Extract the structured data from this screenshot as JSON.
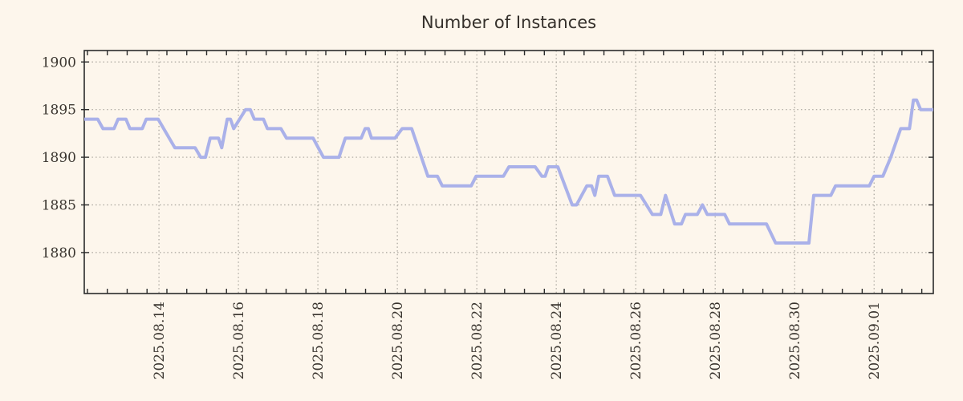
{
  "chart": {
    "title": "Number of Instances",
    "colors": {
      "background": "#fdf6ec",
      "line": "#aab1e9",
      "grid": "#a8a49c",
      "axis": "#2b2b2b",
      "text": "#3a352f"
    }
  },
  "chart_data": {
    "type": "line",
    "title": "Number of Instances",
    "xlabel": "",
    "ylabel": "",
    "x_unit": "days since 2025-08-12 00:00",
    "xlim": [
      0.12,
      21.49
    ],
    "ylim": [
      1875.7,
      1901.2
    ],
    "grid": "dotted",
    "legend": false,
    "y_ticks": [
      1900,
      1895,
      1890,
      1885,
      1880
    ],
    "x_ticks": [
      {
        "t": 2,
        "label": "2025.08.14"
      },
      {
        "t": 4,
        "label": "2025.08.16"
      },
      {
        "t": 6,
        "label": "2025.08.18"
      },
      {
        "t": 8,
        "label": "2025.08.20"
      },
      {
        "t": 10,
        "label": "2025.08.22"
      },
      {
        "t": 12,
        "label": "2025.08.24"
      },
      {
        "t": 14,
        "label": "2025.08.26"
      },
      {
        "t": 16,
        "label": "2025.08.28"
      },
      {
        "t": 18,
        "label": "2025.08.30"
      },
      {
        "t": 20,
        "label": "2025.09.01"
      }
    ],
    "minor_x_tick_start": 0.2,
    "minor_x_tick_step": 0.5,
    "series": [
      {
        "name": "instances",
        "points": [
          [
            0.12,
            1894
          ],
          [
            0.46,
            1894
          ],
          [
            0.59,
            1893
          ],
          [
            0.87,
            1893
          ],
          [
            0.97,
            1894
          ],
          [
            1.17,
            1894
          ],
          [
            1.27,
            1893
          ],
          [
            1.58,
            1893
          ],
          [
            1.68,
            1894
          ],
          [
            1.98,
            1894
          ],
          [
            2.4,
            1891
          ],
          [
            2.91,
            1891
          ],
          [
            3.05,
            1890
          ],
          [
            3.17,
            1890
          ],
          [
            3.29,
            1892
          ],
          [
            3.5,
            1892
          ],
          [
            3.58,
            1891
          ],
          [
            3.72,
            1894
          ],
          [
            3.8,
            1894
          ],
          [
            3.88,
            1893
          ],
          [
            4.18,
            1895
          ],
          [
            4.3,
            1895
          ],
          [
            4.4,
            1894
          ],
          [
            4.63,
            1894
          ],
          [
            4.73,
            1893
          ],
          [
            5.07,
            1893
          ],
          [
            5.21,
            1892
          ],
          [
            5.88,
            1892
          ],
          [
            6.14,
            1890
          ],
          [
            6.53,
            1890
          ],
          [
            6.69,
            1892
          ],
          [
            7.09,
            1892
          ],
          [
            7.19,
            1893
          ],
          [
            7.27,
            1893
          ],
          [
            7.35,
            1892
          ],
          [
            7.94,
            1892
          ],
          [
            8.12,
            1893
          ],
          [
            8.36,
            1893
          ],
          [
            8.77,
            1888
          ],
          [
            9.01,
            1888
          ],
          [
            9.13,
            1887
          ],
          [
            9.86,
            1887
          ],
          [
            9.98,
            1888
          ],
          [
            10.67,
            1888
          ],
          [
            10.81,
            1889
          ],
          [
            11.47,
            1889
          ],
          [
            11.64,
            1888
          ],
          [
            11.72,
            1888
          ],
          [
            11.8,
            1889
          ],
          [
            12.04,
            1889
          ],
          [
            12.4,
            1885
          ],
          [
            12.51,
            1885
          ],
          [
            12.77,
            1887
          ],
          [
            12.89,
            1887
          ],
          [
            12.97,
            1886
          ],
          [
            13.07,
            1888
          ],
          [
            13.29,
            1888
          ],
          [
            13.47,
            1886
          ],
          [
            14.12,
            1886
          ],
          [
            14.42,
            1884
          ],
          [
            14.63,
            1884
          ],
          [
            14.75,
            1886
          ],
          [
            14.98,
            1883
          ],
          [
            15.15,
            1883
          ],
          [
            15.25,
            1884
          ],
          [
            15.55,
            1884
          ],
          [
            15.68,
            1885
          ],
          [
            15.8,
            1884
          ],
          [
            16.24,
            1884
          ],
          [
            16.36,
            1883
          ],
          [
            17.29,
            1883
          ],
          [
            17.52,
            1881
          ],
          [
            18.36,
            1881
          ],
          [
            18.48,
            1886
          ],
          [
            18.91,
            1886
          ],
          [
            19.03,
            1887
          ],
          [
            19.88,
            1887
          ],
          [
            20.0,
            1888
          ],
          [
            20.22,
            1888
          ],
          [
            20.42,
            1890
          ],
          [
            20.67,
            1893
          ],
          [
            20.89,
            1893
          ],
          [
            20.99,
            1896
          ],
          [
            21.07,
            1896
          ],
          [
            21.17,
            1895
          ],
          [
            21.49,
            1895
          ]
        ]
      }
    ]
  }
}
